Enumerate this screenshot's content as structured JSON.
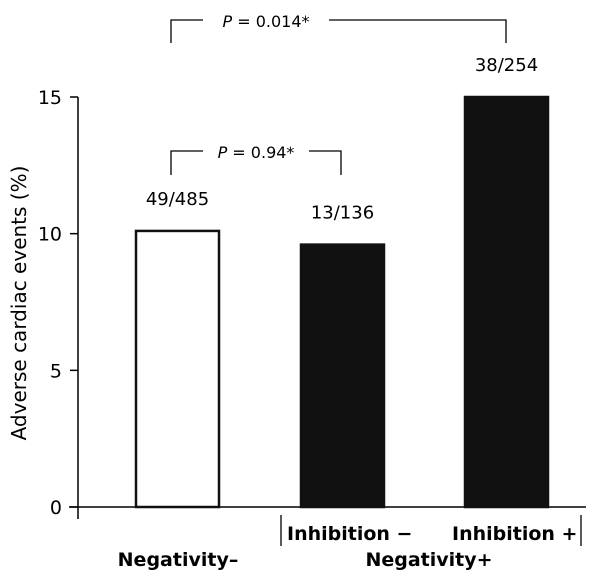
{
  "chart_data": {
    "type": "bar",
    "categories": [
      "Inhibition − (Negativity−)",
      "Inhibition − (Negativity+)",
      "Inhibition + (Negativity+)"
    ],
    "values": [
      10.1,
      9.6,
      15.0
    ],
    "data_labels": [
      "49/485",
      "13/136",
      "38/254"
    ],
    "bar_fill": [
      "#ffffff",
      "#111111",
      "#111111"
    ],
    "ylabel": "Adverse cardiac events (%)",
    "ylim": [
      0,
      15
    ],
    "yticks": [
      "0",
      "5",
      "10",
      "15"
    ],
    "sub_labels": {
      "inhibition_minus": "Inhibition −",
      "inhibition_plus": "Inhibition +"
    },
    "group_labels": {
      "negativity_minus": "Negativity–",
      "negativity_plus": "Negativity+"
    },
    "comparisons": [
      {
        "p": "0.94",
        "prefix": "P",
        "text": " = 0.94*"
      },
      {
        "p": "0.014",
        "prefix": "P",
        "text": " = 0.014*"
      }
    ],
    "grid": false,
    "legend": "none"
  }
}
